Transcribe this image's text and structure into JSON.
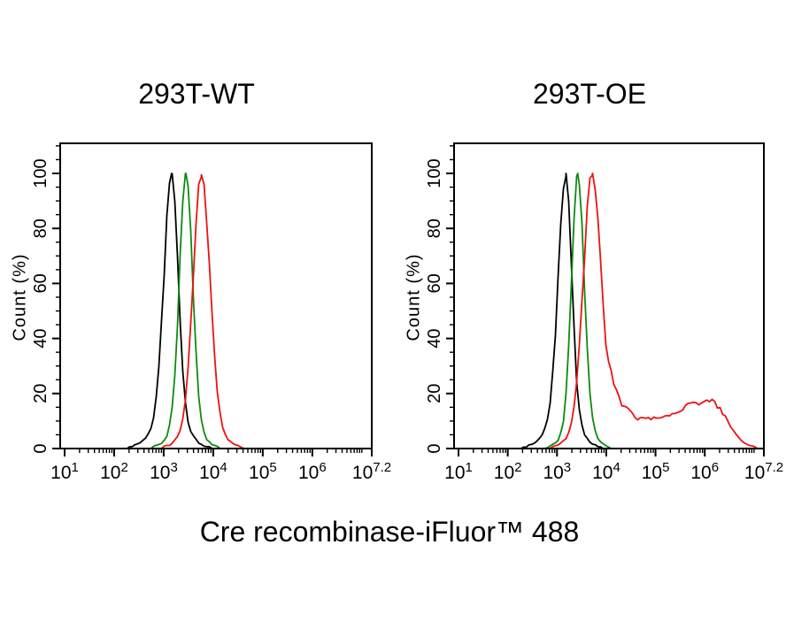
{
  "figure": {
    "background": "#ffffff",
    "xlabel": "Cre recombinase-iFluor™ 488"
  },
  "chart_data": [
    {
      "type": "line",
      "title": "293T-WT",
      "xlabel": "Cre recombinase-iFluor™ 488",
      "ylabel": "Count (%)",
      "x_scale": "log10",
      "x_range_decades": [
        0.91,
        7.2
      ],
      "y_range_pct": [
        0,
        111
      ],
      "grid": false,
      "legend": "none",
      "x_ticks": [
        {
          "decade": 1,
          "base": "10",
          "exp": "1"
        },
        {
          "decade": 2,
          "base": "10",
          "exp": "2"
        },
        {
          "decade": 3,
          "base": "10",
          "exp": "3"
        },
        {
          "decade": 4,
          "base": "10",
          "exp": "4"
        },
        {
          "decade": 5,
          "base": "10",
          "exp": "5"
        },
        {
          "decade": 6,
          "base": "10",
          "exp": "6"
        },
        {
          "decade": 7.2,
          "base": "10",
          "exp": "7.2"
        }
      ],
      "y_ticks": [
        0,
        20,
        40,
        60,
        80,
        100
      ],
      "y_minor_step": 5,
      "y_minor_max": 110,
      "series": [
        {
          "name": "black-curve",
          "color": "#000000",
          "peak_decade": 3.16,
          "peak_pct": 100,
          "sigma_left": 0.15,
          "sigma_right": 0.13,
          "tail_amp": 0.12,
          "tail_mult": 2.3
        },
        {
          "name": "green-curve",
          "color": "#0f8a0f",
          "peak_decade": 3.45,
          "peak_pct": 100,
          "sigma_left": 0.13,
          "sigma_right": 0.13,
          "tail_amp": 0.1,
          "tail_mult": 2.1
        },
        {
          "name": "red-curve",
          "color": "#ee1111",
          "peak_decade": 3.76,
          "peak_pct": 100,
          "sigma_left": 0.16,
          "sigma_right": 0.17,
          "tail_amp": 0.1,
          "tail_mult": 2.0
        }
      ]
    },
    {
      "type": "line",
      "title": "293T-OE",
      "xlabel": "Cre recombinase-iFluor™ 488",
      "ylabel": "Count (%)",
      "x_scale": "log10",
      "x_range_decades": [
        0.91,
        7.2
      ],
      "y_range_pct": [
        0,
        111
      ],
      "grid": false,
      "legend": "none",
      "x_ticks": [
        {
          "decade": 1,
          "base": "10",
          "exp": "1"
        },
        {
          "decade": 2,
          "base": "10",
          "exp": "2"
        },
        {
          "decade": 3,
          "base": "10",
          "exp": "3"
        },
        {
          "decade": 4,
          "base": "10",
          "exp": "4"
        },
        {
          "decade": 5,
          "base": "10",
          "exp": "5"
        },
        {
          "decade": 6,
          "base": "10",
          "exp": "6"
        },
        {
          "decade": 7.2,
          "base": "10",
          "exp": "7.2"
        }
      ],
      "y_ticks": [
        0,
        20,
        40,
        60,
        80,
        100
      ],
      "y_minor_step": 5,
      "y_minor_max": 110,
      "series": [
        {
          "name": "black-curve",
          "color": "#000000",
          "peak_decade": 3.18,
          "peak_pct": 100,
          "sigma_left": 0.15,
          "sigma_right": 0.12,
          "tail_amp": 0.12,
          "tail_mult": 2.3
        },
        {
          "name": "green-curve",
          "color": "#0f8a0f",
          "peak_decade": 3.42,
          "peak_pct": 100,
          "sigma_left": 0.12,
          "sigma_right": 0.13,
          "tail_amp": 0.1,
          "tail_mult": 2.1
        },
        {
          "name": "red-curve",
          "color": "#ee1111",
          "peak_decade": 3.71,
          "peak_pct": 100,
          "sigma_left": 0.17,
          "sigma_right": 0.19,
          "tail_amp": 0.1,
          "tail_mult": 2.0,
          "tail_points": [
            [
              3.95,
              44
            ],
            [
              4.05,
              32
            ],
            [
              4.15,
              23.5
            ],
            [
              4.25,
              18.5
            ],
            [
              4.33,
              15.8
            ],
            [
              4.42,
              14.6
            ],
            [
              4.52,
              12.4
            ],
            [
              4.62,
              11.0
            ],
            [
              4.75,
              10.7
            ],
            [
              4.9,
              11.0
            ],
            [
              5.05,
              11.2
            ],
            [
              5.2,
              11.7
            ],
            [
              5.35,
              12.4
            ],
            [
              5.5,
              13.7
            ],
            [
              5.62,
              15.2
            ],
            [
              5.72,
              16.4
            ],
            [
              5.8,
              17.0
            ],
            [
              5.88,
              16.2
            ],
            [
              5.97,
              17.4
            ],
            [
              6.07,
              18.0
            ],
            [
              6.17,
              16.9
            ],
            [
              6.3,
              14.7
            ],
            [
              6.42,
              11.4
            ],
            [
              6.52,
              8.3
            ],
            [
              6.62,
              5.5
            ],
            [
              6.72,
              3.3
            ],
            [
              6.85,
              1.6
            ],
            [
              7.0,
              0.5
            ],
            [
              7.1,
              0.1
            ],
            [
              7.2,
              0
            ]
          ]
        }
      ]
    }
  ]
}
